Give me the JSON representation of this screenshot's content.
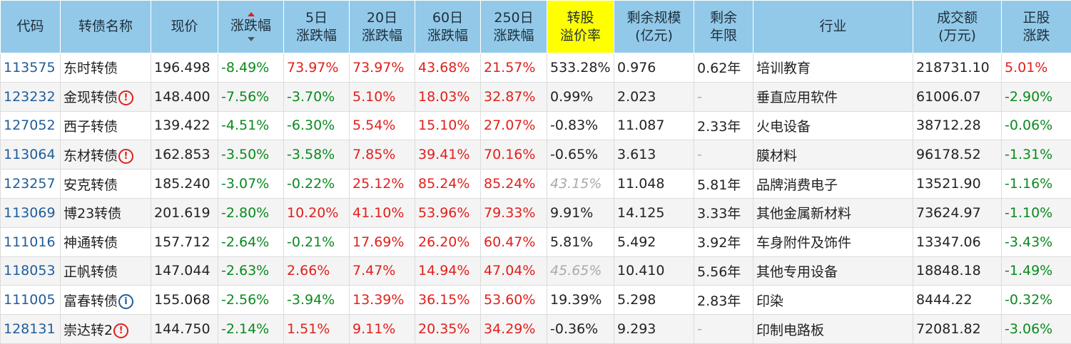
{
  "headers": {
    "code": "代码",
    "name": "转债名称",
    "price": "现价",
    "change": "涨跌幅",
    "d5_line1": "5日",
    "d5_line2": "涨跌幅",
    "d20_line1": "20日",
    "d20_line2": "涨跌幅",
    "d60_line1": "60日",
    "d60_line2": "涨跌幅",
    "d250_line1": "250日",
    "d250_line2": "涨跌幅",
    "premium_line1": "转股",
    "premium_line2": "溢价率",
    "remaining_line1": "剩余规模",
    "remaining_line2": "(亿元)",
    "years_line1": "剩余",
    "years_line2": "年限",
    "industry": "行业",
    "volume_line1": "成交额",
    "volume_line2": "(万元)",
    "stock_line1": "正股",
    "stock_line2": "涨跌"
  },
  "sort": {
    "column": "change",
    "direction": "ascending",
    "icon": "sort-arrows-icon"
  },
  "colors": {
    "header_bg": "#93c9e8",
    "highlight": "#ffff00",
    "up": "#e0201c",
    "down": "#0a8a1e",
    "code": "#1f5d99"
  },
  "rows": [
    {
      "code": "113575",
      "name": "东时转债",
      "badge": "",
      "price": "196.498",
      "change": "-8.49%",
      "d5": "73.97%",
      "d20": "73.97%",
      "d60": "43.68%",
      "d250": "21.57%",
      "premium": "533.28%",
      "premium_muted": false,
      "remaining": "0.976",
      "years": "0.62年",
      "industry": "培训教育",
      "volume": "218731.10",
      "stock": "5.01%"
    },
    {
      "code": "123232",
      "name": "金现转债",
      "badge": "!",
      "price": "148.400",
      "change": "-7.56%",
      "d5": "-3.70%",
      "d20": "5.10%",
      "d60": "18.03%",
      "d250": "32.87%",
      "premium": "0.99%",
      "premium_muted": false,
      "remaining": "2.023",
      "years": "-",
      "industry": "垂直应用软件",
      "volume": "61006.07",
      "stock": "-2.90%"
    },
    {
      "code": "127052",
      "name": "西子转债",
      "badge": "",
      "price": "139.422",
      "change": "-4.51%",
      "d5": "-6.30%",
      "d20": "5.54%",
      "d60": "15.10%",
      "d250": "27.07%",
      "premium": "-0.83%",
      "premium_muted": false,
      "remaining": "11.087",
      "years": "2.33年",
      "industry": "火电设备",
      "volume": "38712.28",
      "stock": "-0.06%"
    },
    {
      "code": "113064",
      "name": "东材转债",
      "badge": "!",
      "price": "162.853",
      "change": "-3.50%",
      "d5": "-3.58%",
      "d20": "7.85%",
      "d60": "39.41%",
      "d250": "70.16%",
      "premium": "-0.65%",
      "premium_muted": false,
      "remaining": "3.613",
      "years": "-",
      "industry": "膜材料",
      "volume": "96178.52",
      "stock": "-1.31%"
    },
    {
      "code": "123257",
      "name": "安克转债",
      "badge": "",
      "price": "185.240",
      "change": "-3.07%",
      "d5": "-0.22%",
      "d20": "25.12%",
      "d60": "85.24%",
      "d250": "85.24%",
      "premium": "43.15%",
      "premium_muted": true,
      "remaining": "11.048",
      "years": "5.81年",
      "industry": "品牌消费电子",
      "volume": "13521.90",
      "stock": "-1.16%"
    },
    {
      "code": "113069",
      "name": "博23转债",
      "badge": "",
      "price": "201.619",
      "change": "-2.80%",
      "d5": "10.20%",
      "d20": "41.10%",
      "d60": "53.96%",
      "d250": "79.33%",
      "premium": "9.91%",
      "premium_muted": false,
      "remaining": "14.125",
      "years": "3.33年",
      "industry": "其他金属新材料",
      "volume": "73624.97",
      "stock": "-1.10%"
    },
    {
      "code": "111016",
      "name": "神通转债",
      "badge": "",
      "price": "157.712",
      "change": "-2.64%",
      "d5": "-0.21%",
      "d20": "17.69%",
      "d60": "26.20%",
      "d250": "60.47%",
      "premium": "5.81%",
      "premium_muted": false,
      "remaining": "5.492",
      "years": "3.92年",
      "industry": "车身附件及饰件",
      "volume": "13347.06",
      "stock": "-3.43%"
    },
    {
      "code": "118053",
      "name": "正帆转债",
      "badge": "",
      "price": "147.044",
      "change": "-2.63%",
      "d5": "2.66%",
      "d20": "7.47%",
      "d60": "14.94%",
      "d250": "47.04%",
      "premium": "45.65%",
      "premium_muted": true,
      "remaining": "10.410",
      "years": "5.56年",
      "industry": "其他专用设备",
      "volume": "18848.18",
      "stock": "-1.49%"
    },
    {
      "code": "111005",
      "name": "富春转债",
      "badge": "i",
      "price": "155.068",
      "change": "-2.56%",
      "d5": "-3.94%",
      "d20": "13.39%",
      "d60": "36.15%",
      "d250": "53.60%",
      "premium": "19.39%",
      "premium_muted": false,
      "remaining": "5.298",
      "years": "2.83年",
      "industry": "印染",
      "volume": "8444.22",
      "stock": "-0.32%"
    },
    {
      "code": "128131",
      "name": "崇达转2",
      "badge": "!",
      "price": "144.750",
      "change": "-2.14%",
      "d5": "1.51%",
      "d20": "9.11%",
      "d60": "20.35%",
      "d250": "34.29%",
      "premium": "-0.36%",
      "premium_muted": false,
      "remaining": "9.293",
      "years": "-",
      "industry": "印制电路板",
      "volume": "72081.82",
      "stock": "-3.06%"
    }
  ]
}
